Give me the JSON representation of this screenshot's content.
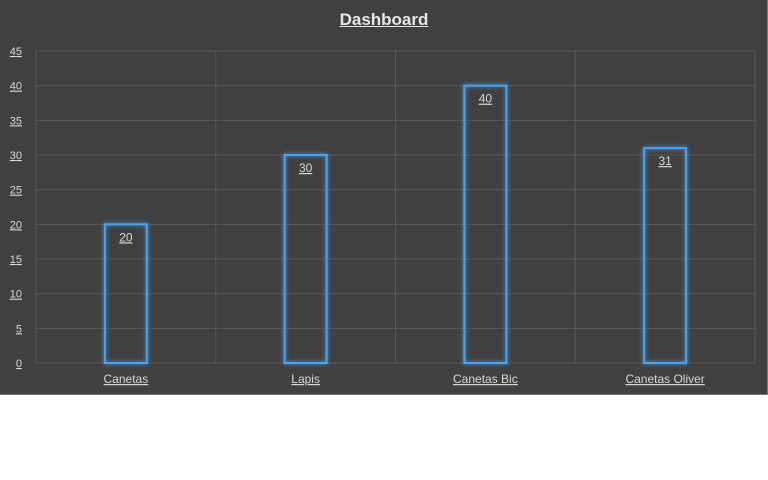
{
  "chart_data": {
    "type": "bar",
    "title": "Dashboard",
    "xlabel": "",
    "ylabel": "",
    "categories": [
      "Canetas",
      "Lapis",
      "Canetas Bic",
      "Canetas Oliver"
    ],
    "values": [
      20,
      30,
      40,
      31
    ],
    "data_labels": [
      "20",
      "30",
      "40",
      "31"
    ],
    "ylim": [
      0,
      45
    ],
    "yticks": [
      "0",
      "5",
      "10",
      "15",
      "20",
      "25",
      "30",
      "35",
      "40",
      "45"
    ],
    "grid": true,
    "legend": "none",
    "colors": {
      "background": "#404040",
      "bar_outline": "#4aa3f0",
      "bar_glow": "#2f7fcf",
      "gridline": "#595959",
      "text": "#d9d9d9"
    }
  }
}
